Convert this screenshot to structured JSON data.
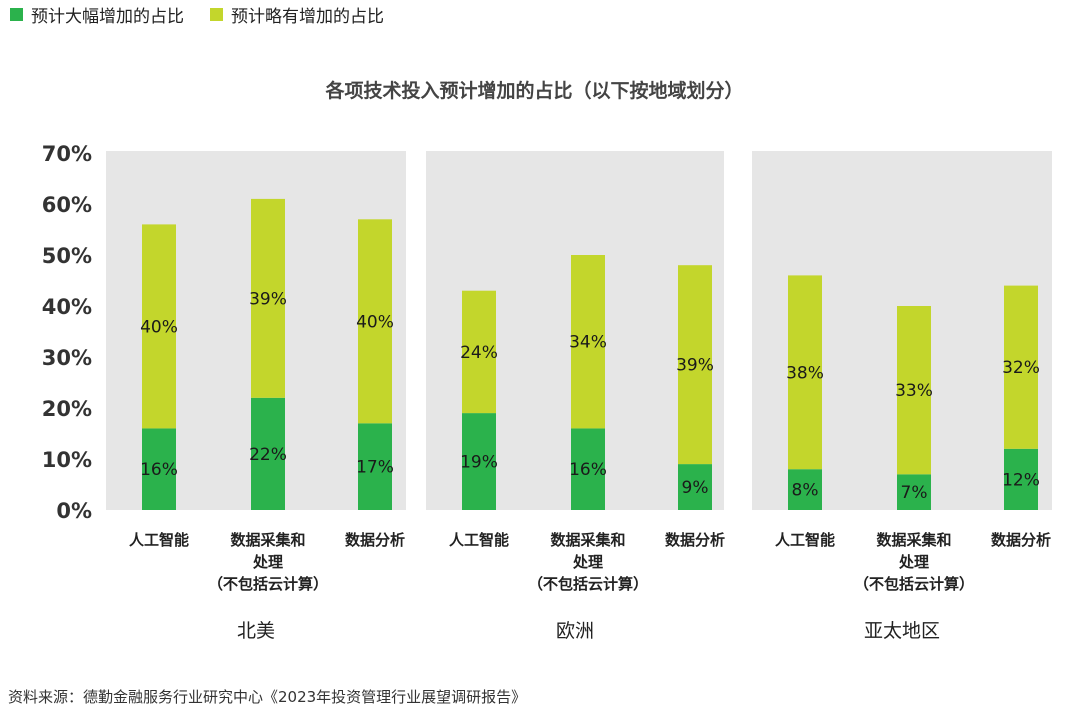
{
  "legend": [
    {
      "label": "预计大幅增加的占比",
      "color": "#2bb24c"
    },
    {
      "label": "预计略有增加的占比",
      "color": "#c3d62c"
    }
  ],
  "title": "各项技术投入预计增加的占比（以下按地域划分）",
  "footer": "资料来源：德勤金融服务行业研究中心《2023年投资管理行业展望调研报告》",
  "chart_data": {
    "type": "bar",
    "stacked": true,
    "title": "各项技术投入预计增加的占比（以下按地域划分）",
    "ylim": [
      0,
      70
    ],
    "yticks": [
      "0%",
      "10%",
      "20%",
      "30%",
      "40%",
      "50%",
      "60%",
      "70%"
    ],
    "series": [
      {
        "name": "预计大幅增加的占比",
        "color": "#2bb24c"
      },
      {
        "name": "预计略有增加的占比",
        "color": "#c3d62c"
      }
    ],
    "groups": [
      {
        "name": "北美",
        "categories": [
          {
            "lines": [
              "人工智能"
            ],
            "values": [
              16,
              40
            ],
            "labels": [
              "16%",
              "40%"
            ]
          },
          {
            "lines": [
              "数据采集和",
              "处理",
              "（不包括云计算）"
            ],
            "values": [
              22,
              39
            ],
            "labels": [
              "22%",
              "39%"
            ]
          },
          {
            "lines": [
              "数据分析"
            ],
            "values": [
              17,
              40
            ],
            "labels": [
              "17%",
              "40%"
            ]
          }
        ]
      },
      {
        "name": "欧洲",
        "categories": [
          {
            "lines": [
              "人工智能"
            ],
            "values": [
              19,
              24
            ],
            "labels": [
              "19%",
              "24%"
            ]
          },
          {
            "lines": [
              "数据采集和",
              "处理",
              "（不包括云计算）"
            ],
            "values": [
              16,
              34
            ],
            "labels": [
              "16%",
              "34%"
            ]
          },
          {
            "lines": [
              "数据分析"
            ],
            "values": [
              9,
              39
            ],
            "labels": [
              "9%",
              "39%"
            ]
          }
        ]
      },
      {
        "name": "亚太地区",
        "categories": [
          {
            "lines": [
              "人工智能"
            ],
            "values": [
              8,
              38
            ],
            "labels": [
              "8%",
              "38%"
            ]
          },
          {
            "lines": [
              "数据采集和",
              "处理",
              "（不包括云计算）"
            ],
            "values": [
              7,
              33
            ],
            "labels": [
              "7%",
              "33%"
            ]
          },
          {
            "lines": [
              "数据分析"
            ],
            "values": [
              12,
              32
            ],
            "labels": [
              "12%",
              "32%"
            ]
          }
        ]
      }
    ]
  }
}
